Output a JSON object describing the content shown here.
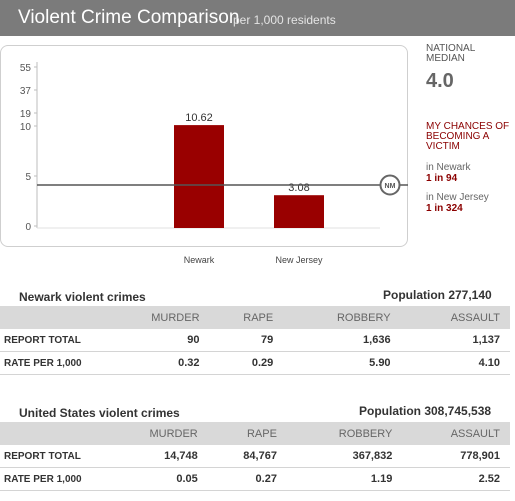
{
  "header": {
    "title": "Violent Crime Comparison",
    "subtitle": "per 1,000 residents"
  },
  "chart_data": {
    "type": "bar",
    "categories": [
      "Newark",
      "New Jersey"
    ],
    "values": [
      10.62,
      3.08
    ],
    "value_labels": [
      "10.62",
      "3.08"
    ],
    "y_ticks": [
      "0",
      "5",
      "10",
      "19",
      "37",
      "55"
    ],
    "y_scale": "non-linear (broken axis: 0-10 linear, compressed above 10)",
    "reference_line": {
      "label": "NM",
      "value": 4.0
    },
    "bar_color": "#990000",
    "grid": false
  },
  "sidebar": {
    "national_median_label": "NATIONAL MEDIAN",
    "national_median_value": "4.0",
    "chances_heading": "MY CHANCES OF BECOMING A VICTIM",
    "city_label": "in Newark",
    "city_odds": "1 in 94",
    "state_label": "in New Jersey",
    "state_odds": "1 in 324"
  },
  "tables": [
    {
      "title": "Newark violent crimes",
      "population": "Population 277,140",
      "columns": [
        "",
        "MURDER",
        "RAPE",
        "ROBBERY",
        "ASSAULT"
      ],
      "rows": [
        {
          "label": "REPORT TOTAL",
          "values": [
            "90",
            "79",
            "1,636",
            "1,137"
          ]
        },
        {
          "label": "RATE PER 1,000",
          "values": [
            "0.32",
            "0.29",
            "5.90",
            "4.10"
          ]
        }
      ]
    },
    {
      "title": "United States violent crimes",
      "population": "Population 308,745,538",
      "columns": [
        "",
        "MURDER",
        "RAPE",
        "ROBBERY",
        "ASSAULT"
      ],
      "rows": [
        {
          "label": "REPORT TOTAL",
          "values": [
            "14,748",
            "84,767",
            "367,832",
            "778,901"
          ]
        },
        {
          "label": "RATE PER 1,000",
          "values": [
            "0.05",
            "0.27",
            "1.19",
            "2.52"
          ]
        }
      ]
    }
  ]
}
